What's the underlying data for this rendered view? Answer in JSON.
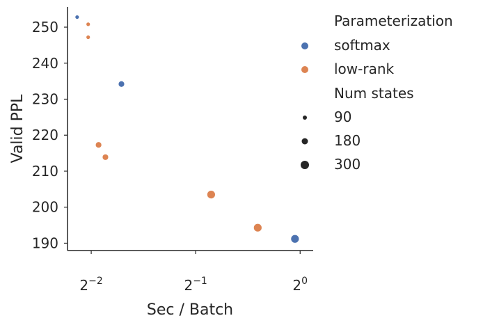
{
  "chart_data": {
    "type": "scatter",
    "xlabel": "Sec / Batch",
    "ylabel": "Valid PPL",
    "xscale": "log2",
    "xlim": [
      0.2136,
      1.0905
    ],
    "ylim": [
      187.96,
      255.61
    ],
    "x_ticks": [
      {
        "value": 0.25,
        "base": "2",
        "exp": "−2"
      },
      {
        "value": 0.5,
        "base": "2",
        "exp": "−1"
      },
      {
        "value": 1.0,
        "base": "2",
        "exp": "0"
      }
    ],
    "y_ticks": [
      190,
      200,
      210,
      220,
      230,
      240,
      250
    ],
    "grid": false,
    "legend_position": "outside-right",
    "colors": {
      "softmax": "#4c72b0",
      "low-rank": "#dd8452",
      "size_key": "#262626"
    },
    "legend": {
      "hue_title": "Parameterization",
      "hue_entries": [
        "softmax",
        "low-rank"
      ],
      "size_title": "Num states",
      "size_entries": [
        90,
        180,
        300
      ]
    },
    "series": [
      {
        "name": "softmax",
        "points": [
          {
            "x": 0.2277,
            "y": 252.8,
            "states": 90
          },
          {
            "x": 0.3055,
            "y": 234.2,
            "states": 180
          },
          {
            "x": 0.9664,
            "y": 191.2,
            "states": 300
          }
        ]
      },
      {
        "name": "low-rank",
        "points": [
          {
            "x": 0.245,
            "y": 250.8,
            "states": 90
          },
          {
            "x": 0.245,
            "y": 247.2,
            "states": 90
          },
          {
            "x": 0.2625,
            "y": 217.3,
            "states": 180
          },
          {
            "x": 0.2747,
            "y": 213.9,
            "states": 180
          },
          {
            "x": 0.5541,
            "y": 203.5,
            "states": 300
          },
          {
            "x": 0.7548,
            "y": 194.3,
            "states": 300
          }
        ]
      }
    ]
  }
}
